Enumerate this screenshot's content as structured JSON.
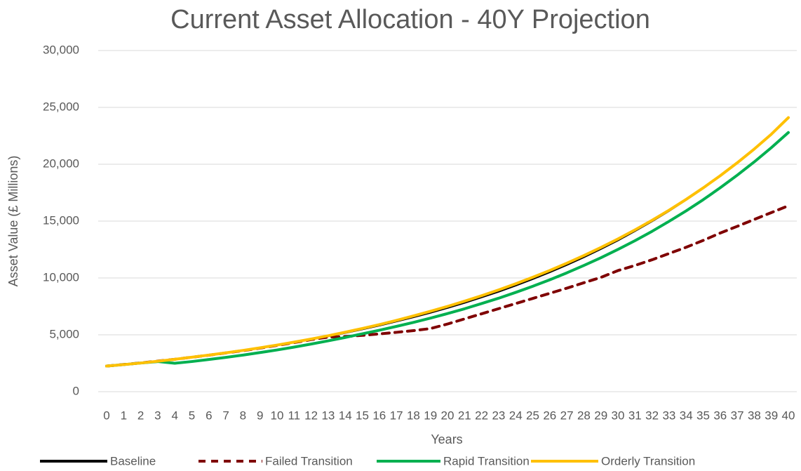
{
  "chart_data": {
    "type": "line",
    "title": "Current Asset Allocation - 40Y Projection",
    "x_label": "Years",
    "y_label": "Asset Value (£ Millions)",
    "categories": [
      "0",
      "1",
      "2",
      "3",
      "4",
      "5",
      "6",
      "7",
      "8",
      "9",
      "10",
      "11",
      "12",
      "13",
      "14",
      "15",
      "16",
      "17",
      "18",
      "19",
      "20",
      "21",
      "22",
      "23",
      "24",
      "25",
      "26",
      "27",
      "28",
      "29",
      "30",
      "31",
      "32",
      "33",
      "34",
      "35",
      "36",
      "37",
      "38",
      "39",
      "40"
    ],
    "series": [
      {
        "name": "Baseline",
        "color": "#000000",
        "line_style": "solid",
        "width": 2,
        "values": [
          2250,
          2390,
          2530,
          2690,
          2850,
          3030,
          3210,
          3410,
          3610,
          3830,
          4070,
          4320,
          4580,
          4860,
          5150,
          5470,
          5800,
          6160,
          6530,
          6930,
          7350,
          7800,
          8280,
          8780,
          9320,
          9890,
          10490,
          11130,
          11810,
          12530,
          13290,
          14110,
          14970,
          15880,
          16850,
          17870,
          18960,
          20120,
          21350,
          22650,
          24030
        ]
      },
      {
        "name": "Failed Transition",
        "color": "#7f0000",
        "line_style": "dashed",
        "width": 4,
        "values": [
          2250,
          2390,
          2530,
          2690,
          2850,
          3030,
          3210,
          3410,
          3610,
          3830,
          4070,
          4320,
          4580,
          4800,
          4850,
          4950,
          5080,
          5220,
          5370,
          5550,
          5950,
          6400,
          6850,
          7300,
          7750,
          8200,
          8650,
          9100,
          9580,
          10050,
          10650,
          11100,
          11600,
          12150,
          12700,
          13300,
          13950,
          14540,
          15150,
          15750,
          16350
        ]
      },
      {
        "name": "Rapid Transition",
        "color": "#00b050",
        "line_style": "solid",
        "width": 4,
        "values": [
          2250,
          2380,
          2520,
          2650,
          2500,
          2650,
          2830,
          3020,
          3220,
          3440,
          3670,
          3920,
          4190,
          4470,
          4770,
          5090,
          5405,
          5740,
          6090,
          6470,
          6870,
          7290,
          7750,
          8220,
          8730,
          9270,
          9840,
          10450,
          11100,
          11780,
          12510,
          13280,
          14100,
          14980,
          15900,
          16880,
          17930,
          19040,
          20210,
          21460,
          22790
        ]
      },
      {
        "name": "Orderly Transition",
        "color": "#ffc000",
        "line_style": "solid",
        "width": 4,
        "values": [
          2250,
          2380,
          2520,
          2680,
          2850,
          3030,
          3220,
          3420,
          3630,
          3860,
          4100,
          4360,
          4630,
          4920,
          5230,
          5560,
          5900,
          6270,
          6660,
          7070,
          7500,
          7960,
          8440,
          8950,
          9490,
          10060,
          10660,
          11300,
          11970,
          12680,
          13430,
          14230,
          15070,
          15960,
          16910,
          17920,
          18990,
          20130,
          21340,
          22640,
          24100
        ]
      }
    ],
    "ylim": [
      0,
      30000
    ],
    "yticks": [
      {
        "value": 0,
        "label": "0"
      },
      {
        "value": 5000,
        "label": "5,000"
      },
      {
        "value": 10000,
        "label": "10,000"
      },
      {
        "value": 15000,
        "label": "15,000"
      },
      {
        "value": 20000,
        "label": "20,000"
      },
      {
        "value": 25000,
        "label": "25,000"
      },
      {
        "value": 30000,
        "label": "30,000"
      }
    ],
    "grid": true,
    "legend": "bottom"
  }
}
